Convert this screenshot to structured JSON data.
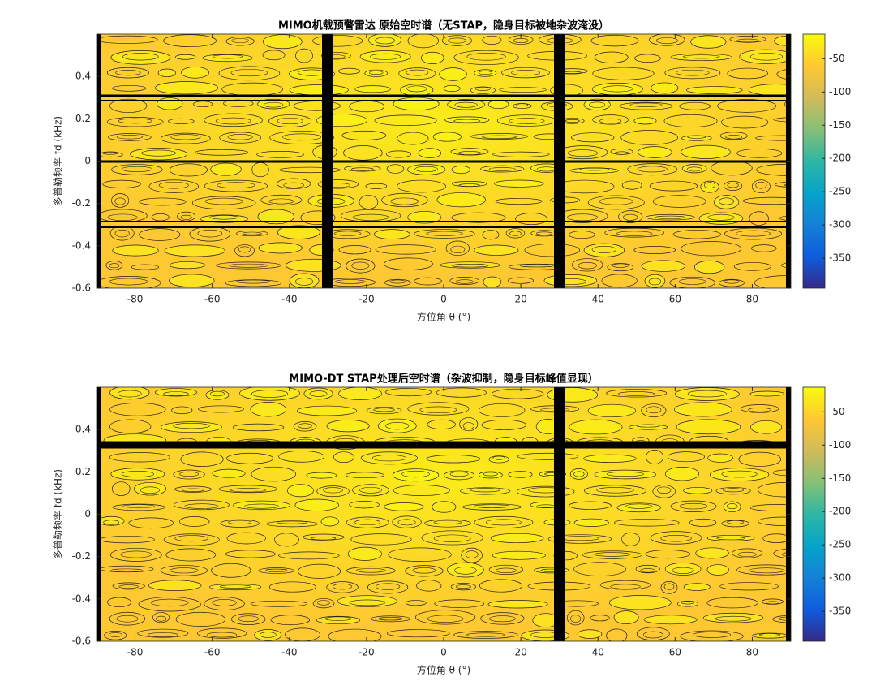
{
  "chart_data": [
    {
      "type": "contour",
      "title": "MIMO机载预警雷达 原始空时谱（无STAP，隐身目标被地杂波淹没）",
      "xlabel": "方位角 θ (°)",
      "ylabel": "多普勒频率 fd (kHz)",
      "xlim": [
        -90,
        90
      ],
      "xticks": [
        -80,
        -60,
        -40,
        -20,
        0,
        20,
        40,
        60,
        80
      ],
      "ylim": [
        -0.6,
        0.6
      ],
      "yticks": [
        -0.6,
        -0.4,
        -0.2,
        0,
        0.2,
        0.4
      ],
      "clim": [
        -395,
        -13
      ],
      "cticks": [
        -350,
        -300,
        -250,
        -200,
        -150,
        -100,
        -50
      ],
      "colormap": [
        "#352a87",
        "#0f5cdd",
        "#1481d6",
        "#06a4ca",
        "#2eb7a4",
        "#87bf77",
        "#d1bb59",
        "#fec832",
        "#f9fb0e"
      ]
    },
    {
      "type": "contour",
      "title": "MIMO-DT STAP处理后空时谱（杂波抑制，隐身目标峰值显现）",
      "xlabel": "方位角 θ (°)",
      "ylabel": "多普勒频率 fd (kHz)",
      "xlim": [
        -90,
        90
      ],
      "xticks": [
        -80,
        -60,
        -40,
        -20,
        0,
        20,
        40,
        60,
        80
      ],
      "ylim": [
        -0.6,
        0.6
      ],
      "yticks": [
        -0.6,
        -0.4,
        -0.2,
        0,
        0.2,
        0.4
      ],
      "clim": [
        -395,
        -13
      ],
      "cticks": [
        -350,
        -300,
        -250,
        -200,
        -150,
        -100,
        -50
      ],
      "colormap": [
        "#352a87",
        "#0f5cdd",
        "#1481d6",
        "#06a4ca",
        "#2eb7a4",
        "#87bf77",
        "#d1bb59",
        "#fec832",
        "#f9fb0e"
      ]
    }
  ]
}
